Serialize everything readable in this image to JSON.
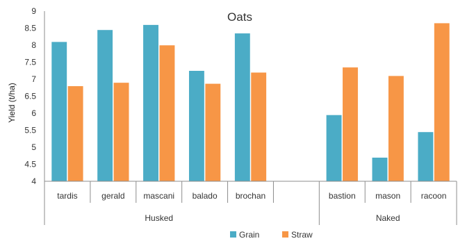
{
  "chart_data": {
    "type": "bar",
    "title": "Oats",
    "ylabel": "Yield (t/ha)",
    "xlabel": "",
    "ylim": [
      4,
      9
    ],
    "yticks": [
      "4",
      "4.5",
      "5",
      "5.5",
      "6",
      "6.5",
      "7",
      "7.5",
      "8",
      "8.5",
      "9"
    ],
    "categories": [
      "tardis",
      "gerald",
      "mascani",
      "balado",
      "brochan",
      "",
      "bastion",
      "mason",
      "racoon"
    ],
    "groups": [
      {
        "label": "Husked",
        "span": [
          0,
          4
        ]
      },
      {
        "label": "Naked",
        "span": [
          6,
          8
        ]
      }
    ],
    "series": [
      {
        "name": "Grain",
        "color": "#4bacc6",
        "values": [
          8.1,
          8.45,
          8.6,
          7.25,
          8.35,
          null,
          5.95,
          4.7,
          5.45
        ]
      },
      {
        "name": "Straw",
        "color": "#f79646",
        "values": [
          6.8,
          6.9,
          8.0,
          6.87,
          7.2,
          null,
          7.35,
          7.1,
          8.65
        ]
      }
    ],
    "grid": false,
    "legend_position": "bottom"
  }
}
